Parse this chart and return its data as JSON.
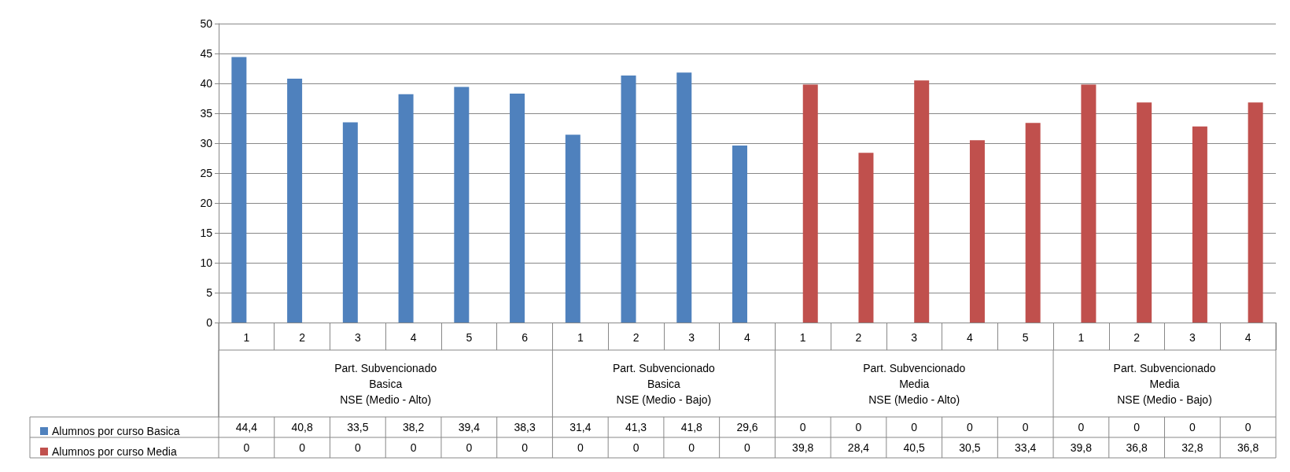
{
  "chart_data": {
    "type": "bar",
    "categories": [
      "1",
      "2",
      "3",
      "4",
      "5",
      "6",
      "1",
      "2",
      "3",
      "4",
      "1",
      "2",
      "3",
      "4",
      "5",
      "1",
      "2",
      "3",
      "4"
    ],
    "series": [
      {
        "name": "Alumnos por curso Basica",
        "color": "#4f81bd",
        "values": [
          44.4,
          40.8,
          33.5,
          38.2,
          39.4,
          38.3,
          31.4,
          41.3,
          41.8,
          29.6,
          0,
          0,
          0,
          0,
          0,
          0,
          0,
          0,
          0
        ],
        "value_labels": [
          "44,4",
          "40,8",
          "33,5",
          "38,2",
          "39,4",
          "38,3",
          "31,4",
          "41,3",
          "41,8",
          "29,6",
          "0",
          "0",
          "0",
          "0",
          "0",
          "0",
          "0",
          "0",
          "0"
        ]
      },
      {
        "name": "Alumnos por curso Media",
        "color": "#c0504d",
        "values": [
          0,
          0,
          0,
          0,
          0,
          0,
          0,
          0,
          0,
          0,
          39.8,
          28.4,
          40.5,
          30.5,
          33.4,
          39.8,
          36.8,
          32.8,
          36.8
        ],
        "value_labels": [
          "0",
          "0",
          "0",
          "0",
          "0",
          "0",
          "0",
          "0",
          "0",
          "0",
          "39,8",
          "28,4",
          "40,5",
          "30,5",
          "33,4",
          "39,8",
          "36,8",
          "32,8",
          "36,8"
        ]
      }
    ],
    "annotations": [
      "Part. Subvencionado\nBasica\nNSE (Medio - Alto)",
      "Part. Subvencionado\nBasica\nNSE (Medio - Bajo)",
      "Part. Subvencionado\nMedia\nNSE (Medio - Alto)",
      "Part. Subvencionado\nMedia\nNSE (Medio - Bajo)"
    ],
    "ylim": [
      0,
      50
    ],
    "yticks": [
      0,
      5,
      10,
      15,
      20,
      25,
      30,
      35,
      40,
      45,
      50
    ],
    "grid": "y",
    "legend": "bottom left"
  }
}
